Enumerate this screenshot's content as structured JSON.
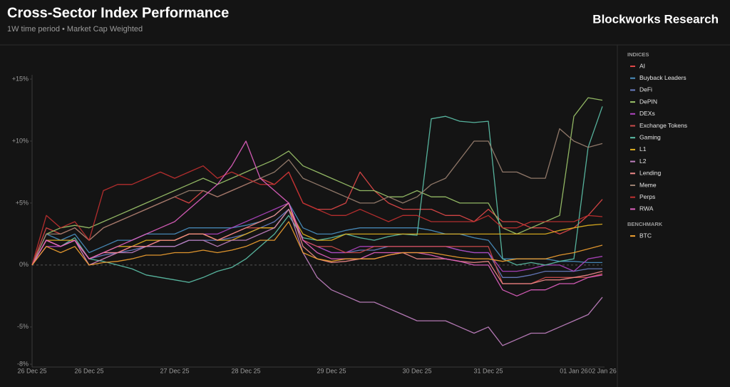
{
  "chart_data": {
    "type": "line",
    "title": "Cross-Sector Index Performance",
    "subtitle": "1W time period • Market Cap Weighted",
    "brand": "Blockworks Research",
    "categories": [
      "26 Dec 25",
      null,
      null,
      null,
      "26 Dec 25",
      null,
      null,
      null,
      null,
      null,
      "27 Dec 25",
      null,
      null,
      null,
      null,
      "28 Dec 25",
      null,
      null,
      null,
      null,
      null,
      "29 Dec 25",
      null,
      null,
      null,
      null,
      null,
      "30 Dec 25",
      null,
      null,
      null,
      null,
      "31 Dec 25",
      null,
      null,
      null,
      null,
      null,
      "01 Jan 26",
      null,
      "02 Jan 26"
    ],
    "ylim": [
      -8,
      15
    ],
    "yticks": [
      {
        "value": -8,
        "label": "-8%"
      },
      {
        "value": -5,
        "label": "-5%"
      },
      {
        "value": 0,
        "label": "0%"
      },
      {
        "value": 5,
        "label": "+5%"
      },
      {
        "value": 10,
        "label": "+10%"
      },
      {
        "value": 15,
        "label": "+15%"
      }
    ],
    "series_groups": [
      {
        "title": "INDICES",
        "series": [
          {
            "name": "AI",
            "color": "#e04848",
            "values": [
              0,
              3,
              2.5,
              3,
              2,
              3,
              3.5,
              4,
              4.5,
              5,
              5.5,
              5,
              6,
              5.5,
              6,
              6.5,
              7,
              6.5,
              7.5,
              5,
              4.5,
              4.5,
              5,
              7.5,
              6,
              5,
              4.5,
              4.5,
              4.5,
              4,
              4,
              3.5,
              4.5,
              3.5,
              3.5,
              3,
              3,
              2.5,
              3,
              4,
              5.3
            ]
          },
          {
            "name": "Buyback Leaders",
            "color": "#4a8fc0",
            "values": [
              0,
              2.5,
              2,
              2.5,
              1,
              1.5,
              2,
              2,
              2.5,
              2.5,
              2.5,
              3,
              3,
              3,
              3,
              3.2,
              3.5,
              4,
              5,
              3,
              2.5,
              2.5,
              2.8,
              3,
              3,
              3,
              3,
              3,
              2.8,
              2.5,
              2.5,
              2.2,
              2,
              0.5,
              0.5,
              0.5,
              0.5,
              0.3,
              0.3,
              0.2,
              0.2
            ]
          },
          {
            "name": "DeFi",
            "color": "#6a7fc4",
            "values": [
              0,
              2,
              1.5,
              2,
              0.5,
              0.8,
              1,
              1.2,
              1.5,
              1.5,
              1.5,
              2,
              2,
              2,
              2.2,
              2.5,
              3,
              3.5,
              4.5,
              2,
              1.5,
              1,
              1,
              1.2,
              1.2,
              1.5,
              1.5,
              1.5,
              1.5,
              1.5,
              1.2,
              1,
              1,
              -1,
              -1,
              -0.8,
              -0.5,
              -0.5,
              -0.5,
              -0.3,
              -0.3
            ]
          },
          {
            "name": "DePIN",
            "color": "#9cc46a",
            "values": [
              0,
              2.5,
              3,
              3.2,
              3,
              3.5,
              4,
              4.5,
              5,
              5.5,
              6,
              6.5,
              7,
              6.5,
              7,
              7.5,
              8,
              8.5,
              9.2,
              8,
              7.5,
              7,
              6.5,
              6,
              6,
              5.5,
              5.5,
              6,
              5.5,
              5.5,
              5,
              5,
              5,
              3,
              2.5,
              3,
              3.5,
              4,
              12,
              13.5,
              13.3
            ]
          },
          {
            "name": "DEXs",
            "color": "#b044c0",
            "values": [
              0,
              1.5,
              1.5,
              2,
              0.5,
              1,
              1,
              1.5,
              1.5,
              2,
              2,
              2.5,
              2.5,
              2.5,
              3,
              3.5,
              4,
              4.5,
              5,
              2,
              1.5,
              1,
              1,
              1.5,
              1.5,
              1.5,
              1.5,
              1.5,
              1.5,
              1.5,
              1.2,
              1,
              1,
              -0.5,
              -0.5,
              -0.3,
              0,
              0,
              -0.5,
              0.5,
              0.7
            ]
          },
          {
            "name": "Exchange Tokens",
            "color": "#c84a4a",
            "values": [
              0,
              2,
              1.5,
              2,
              0,
              0.5,
              1,
              1.5,
              1.5,
              2,
              2,
              2.5,
              2.5,
              2,
              2.5,
              3,
              3,
              3,
              4.5,
              2,
              1.5,
              1.5,
              1,
              1,
              1.5,
              1.5,
              1.5,
              1.5,
              1.5,
              1.5,
              1.5,
              1.5,
              1.5,
              -1.5,
              -1.5,
              -1.5,
              -1,
              -1,
              -1,
              -1,
              -0.7
            ]
          },
          {
            "name": "Gaming",
            "color": "#5cc0a8",
            "values": [
              0,
              2,
              1.5,
              2.2,
              0.5,
              0.3,
              0,
              -0.3,
              -0.8,
              -1,
              -1.2,
              -1.4,
              -1,
              -0.5,
              -0.2,
              0.5,
              1.5,
              2.5,
              4,
              2.2,
              2,
              2.2,
              2.5,
              2.2,
              2,
              2.3,
              2.5,
              2.4,
              11.8,
              12,
              11.6,
              11.5,
              11.6,
              0.5,
              0,
              0.2,
              0,
              0.3,
              0.5,
              9.5,
              12.8
            ]
          },
          {
            "name": "L1",
            "color": "#e0b020",
            "values": [
              0,
              2,
              2,
              2,
              0.5,
              1,
              1.5,
              1.5,
              2,
              2,
              2,
              2.5,
              2.5,
              2,
              2,
              2.5,
              3,
              3,
              4.5,
              2.5,
              2,
              2,
              2.5,
              2.5,
              2.5,
              2.5,
              2.5,
              2.5,
              2.5,
              2.5,
              2.5,
              2.5,
              2.5,
              2.5,
              2.5,
              2.5,
              2.5,
              2.8,
              3,
              3.2,
              3.3
            ]
          },
          {
            "name": "L2",
            "color": "#c080c0",
            "values": [
              0,
              2,
              1.5,
              2,
              0,
              0.5,
              1,
              1,
              1.5,
              1.5,
              1.5,
              2,
              2,
              1.5,
              2,
              2,
              2.5,
              3,
              4.5,
              1,
              -1,
              -2,
              -2.5,
              -3,
              -3,
              -3.5,
              -4,
              -4.5,
              -4.5,
              -4.5,
              -5,
              -5.5,
              -5,
              -6.5,
              -6,
              -5.5,
              -5.5,
              -5,
              -4.5,
              -4,
              -2.6
            ]
          },
          {
            "name": "Lending",
            "color": "#f08a8a",
            "values": [
              0,
              2,
              1.5,
              2,
              0.5,
              1,
              1,
              1.5,
              1.5,
              2,
              2,
              2.5,
              2.5,
              2,
              2.5,
              3,
              3.5,
              4,
              5,
              1.5,
              0.5,
              0.2,
              0.3,
              0.5,
              0.5,
              0.8,
              1,
              0.5,
              0.5,
              0.5,
              0.3,
              0.2,
              0.3,
              -1.5,
              -1.5,
              -1.5,
              -1.2,
              -1.2,
              -1,
              -0.8,
              -0.5
            ]
          },
          {
            "name": "Meme",
            "color": "#9a8070",
            "values": [
              0,
              2.5,
              2.5,
              3,
              2,
              3,
              3.5,
              4,
              4.5,
              5,
              5.5,
              6,
              6,
              5.5,
              6,
              6.5,
              7,
              7.5,
              8.5,
              7,
              6.5,
              6,
              5.5,
              5,
              5,
              5.5,
              5,
              5.5,
              6.5,
              7,
              8.5,
              10,
              10,
              7.5,
              7.5,
              7,
              7,
              11,
              10,
              9.5,
              9.8
            ]
          },
          {
            "name": "Perps",
            "color": "#c03030",
            "values": [
              0,
              4,
              3,
              3.5,
              2,
              6,
              6.5,
              6.5,
              7,
              7.5,
              7,
              7.5,
              8,
              7,
              7.5,
              7,
              6.5,
              6.5,
              7.5,
              5,
              4.5,
              4,
              4,
              4.5,
              4,
              3.5,
              4,
              4,
              3.5,
              3.5,
              3.5,
              3.5,
              4,
              3,
              3,
              3.5,
              3.5,
              3.5,
              3.5,
              4,
              3.9
            ]
          },
          {
            "name": "RWA",
            "color": "#e060c0",
            "values": [
              0,
              2,
              1.5,
              2,
              0.5,
              1,
              1.5,
              2,
              2.5,
              3,
              3.5,
              4.5,
              5.5,
              6.5,
              8,
              10,
              7,
              6,
              5,
              2,
              1,
              0.5,
              0.5,
              0.5,
              1,
              1,
              1,
              1,
              0.8,
              0.5,
              0.3,
              0,
              0,
              -2,
              -2.5,
              -2,
              -2,
              -1.5,
              -1.5,
              -1,
              -0.8
            ]
          }
        ]
      },
      {
        "title": "BENCHMARK",
        "series": [
          {
            "name": "BTC",
            "color": "#f0a030",
            "values": [
              0,
              1.5,
              1,
              1.5,
              0,
              0.2,
              0.3,
              0.5,
              0.8,
              0.8,
              1,
              1,
              1.2,
              1,
              1.2,
              1.5,
              2,
              2,
              3.5,
              1,
              0.5,
              0.3,
              0.5,
              0.5,
              0.5,
              0.8,
              1,
              1,
              1,
              0.8,
              0.6,
              0.5,
              0.5,
              0.3,
              0.5,
              0.5,
              0.5,
              0.8,
              1,
              1.3,
              1.6
            ]
          }
        ]
      }
    ]
  }
}
